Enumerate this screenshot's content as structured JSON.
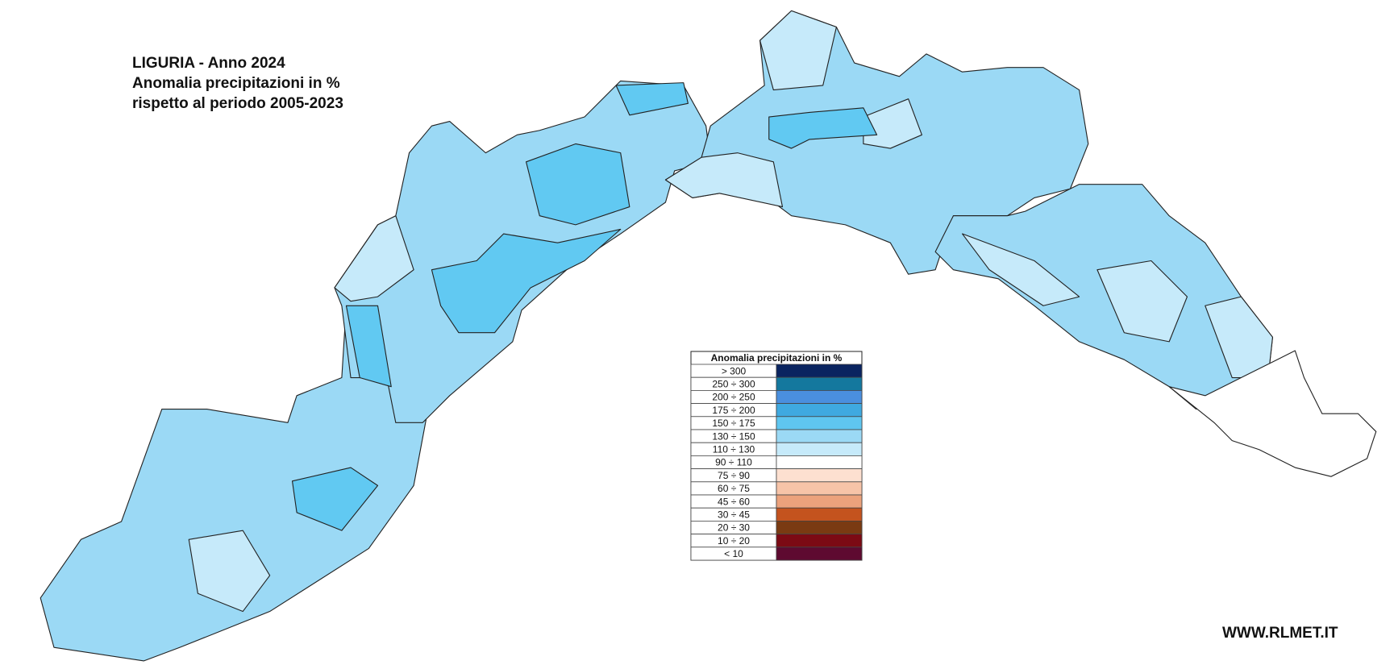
{
  "header": {
    "title_lines": [
      "LIGURIA - Anno 2024",
      "Anomalia precipitazioni in %",
      "rispetto al periodo 2005-2023"
    ]
  },
  "legend": {
    "title": "Anomalia precipitazioni in %",
    "classes": [
      {
        "label": "> 300",
        "color": "#0a2460"
      },
      {
        "label": "250 ÷ 300",
        "color": "#14789e"
      },
      {
        "label": "200 ÷ 250",
        "color": "#4a8fde"
      },
      {
        "label": "175 ÷ 200",
        "color": "#3fa9e0"
      },
      {
        "label": "150 ÷ 175",
        "color": "#5fc6f0"
      },
      {
        "label": "130 ÷ 150",
        "color": "#9bd9f5"
      },
      {
        "label": "110 ÷ 130",
        "color": "#c6eafa"
      },
      {
        "label": "90 ÷ 110",
        "color": "#ffffff"
      },
      {
        "label": "75 ÷ 90",
        "color": "#fde0d0"
      },
      {
        "label": "60 ÷ 75",
        "color": "#f7c4a8"
      },
      {
        "label": "45 ÷ 60",
        "color": "#eca27c"
      },
      {
        "label": "30 ÷ 45",
        "color": "#c4531e"
      },
      {
        "label": "20 ÷ 30",
        "color": "#7a3a12"
      },
      {
        "label": "10 ÷ 20",
        "color": "#7c0a14"
      },
      {
        "label": "< 10",
        "color": "#5e0a30"
      }
    ]
  },
  "footer": "WWW.RLMET.IT"
}
